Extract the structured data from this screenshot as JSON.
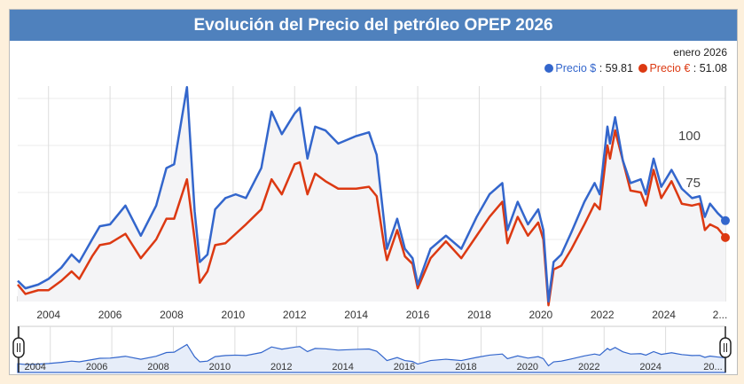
{
  "title": "Evolución del Precio del petróleo OPEP 2026",
  "current": {
    "date": "enero 2026",
    "usd_label": "Precio $",
    "usd_value": "59.81",
    "eur_label": "Precio €",
    "eur_value": "51.08"
  },
  "colors": {
    "usd": "#3366cc",
    "eur": "#dc3912",
    "header": "#4f81bd"
  },
  "chart_data": {
    "type": "line",
    "ylim": [
      0,
      135
    ],
    "xlim": [
      "2003-01",
      "2026-01"
    ],
    "yticks": [
      25,
      50,
      75,
      100
    ],
    "xticks": [
      "2004",
      "2006",
      "2008",
      "2010",
      "2012",
      "2014",
      "2016",
      "2018",
      "2020",
      "2022",
      "2024",
      "2..."
    ],
    "navigator_ticks": [
      "2004",
      "2006",
      "2008",
      "2010",
      "2012",
      "2014",
      "2016",
      "2018",
      "2020",
      "2022",
      "2024",
      "20..."
    ],
    "grid": true,
    "legend": "top-right",
    "series": [
      {
        "name": "Precio $",
        "color": "#3366cc",
        "points": [
          [
            "2003-01",
            28
          ],
          [
            "2003-04",
            24
          ],
          [
            "2003-09",
            26
          ],
          [
            "2004-01",
            29
          ],
          [
            "2004-06",
            35
          ],
          [
            "2004-10",
            42
          ],
          [
            "2005-01",
            38
          ],
          [
            "2005-06",
            50
          ],
          [
            "2005-09",
            57
          ],
          [
            "2006-01",
            58
          ],
          [
            "2006-07",
            68
          ],
          [
            "2007-01",
            52
          ],
          [
            "2007-07",
            68
          ],
          [
            "2007-11",
            88
          ],
          [
            "2008-02",
            90
          ],
          [
            "2008-07",
            131
          ],
          [
            "2008-10",
            65
          ],
          [
            "2008-12",
            38
          ],
          [
            "2009-03",
            42
          ],
          [
            "2009-06",
            66
          ],
          [
            "2009-10",
            72
          ],
          [
            "2010-02",
            74
          ],
          [
            "2010-06",
            72
          ],
          [
            "2010-12",
            88
          ],
          [
            "2011-04",
            118
          ],
          [
            "2011-08",
            106
          ],
          [
            "2012-01",
            117
          ],
          [
            "2012-03",
            120
          ],
          [
            "2012-06",
            93
          ],
          [
            "2012-09",
            110
          ],
          [
            "2013-01",
            108
          ],
          [
            "2013-06",
            101
          ],
          [
            "2014-01",
            105
          ],
          [
            "2014-06",
            107
          ],
          [
            "2014-09",
            95
          ],
          [
            "2014-12",
            58
          ],
          [
            "2015-01",
            45
          ],
          [
            "2015-05",
            61
          ],
          [
            "2015-08",
            45
          ],
          [
            "2015-11",
            40
          ],
          [
            "2016-01",
            26
          ],
          [
            "2016-06",
            45
          ],
          [
            "2016-12",
            52
          ],
          [
            "2017-06",
            45
          ],
          [
            "2017-12",
            62
          ],
          [
            "2018-05",
            74
          ],
          [
            "2018-10",
            80
          ],
          [
            "2018-12",
            55
          ],
          [
            "2019-04",
            70
          ],
          [
            "2019-08",
            58
          ],
          [
            "2019-12",
            66
          ],
          [
            "2020-02",
            55
          ],
          [
            "2020-04",
            17
          ],
          [
            "2020-06",
            38
          ],
          [
            "2020-09",
            42
          ],
          [
            "2021-01",
            54
          ],
          [
            "2021-06",
            70
          ],
          [
            "2021-10",
            80
          ],
          [
            "2021-12",
            74
          ],
          [
            "2022-03",
            110
          ],
          [
            "2022-04",
            101
          ],
          [
            "2022-06",
            115
          ],
          [
            "2022-09",
            92
          ],
          [
            "2022-12",
            80
          ],
          [
            "2023-04",
            82
          ],
          [
            "2023-06",
            74
          ],
          [
            "2023-09",
            93
          ],
          [
            "2023-12",
            78
          ],
          [
            "2024-04",
            87
          ],
          [
            "2024-08",
            77
          ],
          [
            "2024-12",
            72
          ],
          [
            "2025-03",
            73
          ],
          [
            "2025-05",
            62
          ],
          [
            "2025-07",
            69
          ],
          [
            "2025-10",
            64
          ],
          [
            "2026-01",
            60
          ]
        ]
      },
      {
        "name": "Precio €",
        "color": "#dc3912",
        "points": [
          [
            "2003-01",
            26
          ],
          [
            "2003-04",
            21
          ],
          [
            "2003-09",
            23
          ],
          [
            "2004-01",
            23
          ],
          [
            "2004-06",
            28
          ],
          [
            "2004-10",
            33
          ],
          [
            "2005-01",
            29
          ],
          [
            "2005-06",
            41
          ],
          [
            "2005-09",
            47
          ],
          [
            "2006-01",
            48
          ],
          [
            "2006-07",
            53
          ],
          [
            "2007-01",
            40
          ],
          [
            "2007-07",
            50
          ],
          [
            "2007-11",
            61
          ],
          [
            "2008-02",
            61
          ],
          [
            "2008-07",
            82
          ],
          [
            "2008-10",
            50
          ],
          [
            "2008-12",
            27
          ],
          [
            "2009-03",
            33
          ],
          [
            "2009-06",
            47
          ],
          [
            "2009-10",
            48
          ],
          [
            "2010-02",
            53
          ],
          [
            "2010-06",
            58
          ],
          [
            "2010-12",
            66
          ],
          [
            "2011-04",
            82
          ],
          [
            "2011-08",
            74
          ],
          [
            "2012-01",
            90
          ],
          [
            "2012-03",
            91
          ],
          [
            "2012-06",
            74
          ],
          [
            "2012-09",
            85
          ],
          [
            "2013-01",
            81
          ],
          [
            "2013-06",
            77
          ],
          [
            "2014-01",
            77
          ],
          [
            "2014-06",
            78
          ],
          [
            "2014-09",
            73
          ],
          [
            "2014-12",
            46
          ],
          [
            "2015-01",
            39
          ],
          [
            "2015-05",
            55
          ],
          [
            "2015-08",
            41
          ],
          [
            "2015-11",
            37
          ],
          [
            "2016-01",
            24
          ],
          [
            "2016-06",
            40
          ],
          [
            "2016-12",
            49
          ],
          [
            "2017-06",
            40
          ],
          [
            "2017-12",
            52
          ],
          [
            "2018-05",
            62
          ],
          [
            "2018-10",
            70
          ],
          [
            "2018-12",
            48
          ],
          [
            "2019-04",
            62
          ],
          [
            "2019-08",
            52
          ],
          [
            "2019-12",
            59
          ],
          [
            "2020-02",
            50
          ],
          [
            "2020-04",
            15
          ],
          [
            "2020-06",
            34
          ],
          [
            "2020-09",
            36
          ],
          [
            "2021-01",
            45
          ],
          [
            "2021-06",
            58
          ],
          [
            "2021-10",
            69
          ],
          [
            "2021-12",
            66
          ],
          [
            "2022-03",
            100
          ],
          [
            "2022-04",
            93
          ],
          [
            "2022-06",
            108
          ],
          [
            "2022-09",
            92
          ],
          [
            "2022-12",
            76
          ],
          [
            "2023-04",
            75
          ],
          [
            "2023-06",
            68
          ],
          [
            "2023-09",
            87
          ],
          [
            "2023-12",
            72
          ],
          [
            "2024-04",
            81
          ],
          [
            "2024-08",
            69
          ],
          [
            "2024-12",
            68
          ],
          [
            "2025-03",
            69
          ],
          [
            "2025-05",
            55
          ],
          [
            "2025-07",
            58
          ],
          [
            "2025-10",
            56
          ],
          [
            "2026-01",
            51
          ]
        ]
      }
    ]
  }
}
